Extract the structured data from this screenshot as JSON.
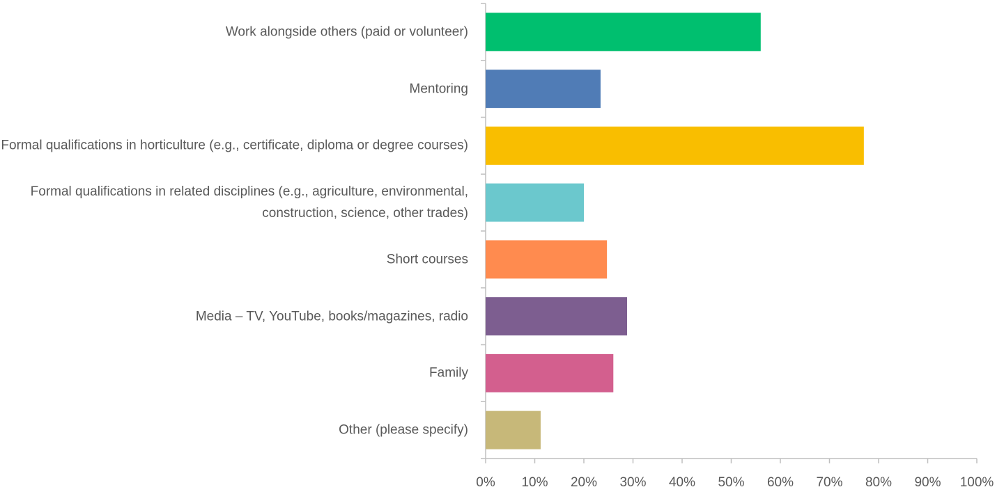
{
  "chart_data": {
    "type": "hbar",
    "categories": [
      "Work alongside others (paid or volunteer)",
      "Mentoring",
      "Formal qualifications in horticulture (e.g., certificate, diploma or degree courses)",
      "Formal qualifications in related disciplines (e.g., agriculture, environmental, construction, science, other trades)",
      "Short courses",
      "Media – TV, YouTube, books/magazines, radio",
      "Family",
      "Other (please specify)"
    ],
    "values": [
      56.0,
      23.4,
      77.0,
      20.0,
      24.7,
      28.8,
      26.0,
      11.2
    ],
    "colors": [
      "#00bf6f",
      "#507cb6",
      "#f9be00",
      "#6bc8cd",
      "#ff8b4f",
      "#7d5e90",
      "#d35f8e",
      "#c7b879"
    ],
    "xlim": [
      0,
      100
    ],
    "xticks": [
      {
        "value": 0,
        "label": "0%"
      },
      {
        "value": 10,
        "label": "10%"
      },
      {
        "value": 20,
        "label": "20%"
      },
      {
        "value": 30,
        "label": "30%"
      },
      {
        "value": 40,
        "label": "40%"
      },
      {
        "value": 50,
        "label": "50%"
      },
      {
        "value": 60,
        "label": "60%"
      },
      {
        "value": 70,
        "label": "70%"
      },
      {
        "value": 80,
        "label": "80%"
      },
      {
        "value": 90,
        "label": "90%"
      },
      {
        "value": 100,
        "label": "100%"
      }
    ],
    "grid": false
  }
}
